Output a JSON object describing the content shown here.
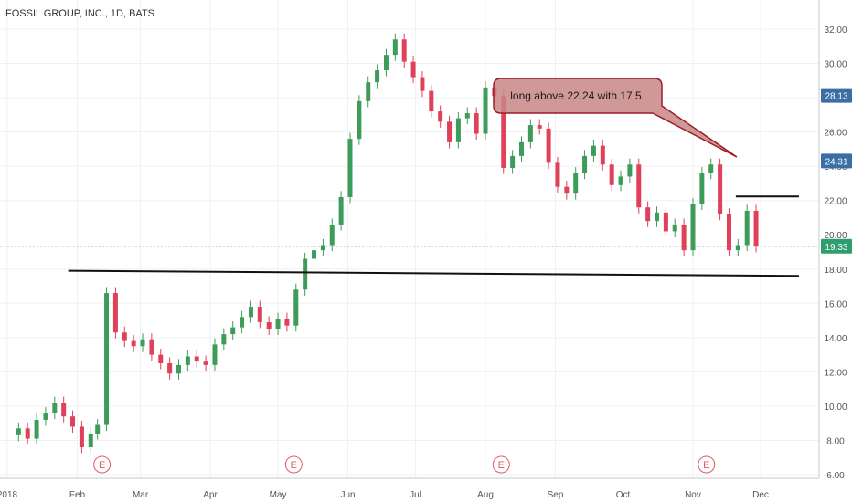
{
  "header": {
    "title": "FOSSIL GROUP, INC., 1D, BATS"
  },
  "annotation": {
    "text": "long above 22.24 with 17.5"
  },
  "colors": {
    "up": "#3e9c5a",
    "down": "#e0405a",
    "line": "#111111",
    "callout_fill": "#c98686",
    "callout_border": "#9e1c2a",
    "badge_blue": "#3a6ea5",
    "badge_green": "#2e9e6e",
    "earnings": "#e05a6a"
  },
  "chart_data": {
    "type": "candlestick",
    "title": "FOSSIL GROUP, INC., 1D, BATS",
    "xlabel": "",
    "ylabel": "",
    "ylim": [
      5.8,
      33.0
    ],
    "y_ticks": [
      "32.00",
      "30.00",
      "28.00",
      "26.00",
      "24.00",
      "22.00",
      "20.00",
      "18.00",
      "16.00",
      "14.00",
      "12.00",
      "10.00",
      "8.00",
      "6.00"
    ],
    "x_ticks": [
      "2018",
      "Feb",
      "Mar",
      "Apr",
      "May",
      "Jun",
      "Jul",
      "Aug",
      "Sep",
      "Oct",
      "Nov",
      "Dec"
    ],
    "price_badges": [
      {
        "value": 28.13,
        "label": "28.13",
        "color": "#3a6ea5"
      },
      {
        "value": 24.31,
        "label": "24.31",
        "color": "#3a6ea5"
      },
      {
        "value": 19.33,
        "label": "19.33",
        "color": "#2e9e6e"
      }
    ],
    "last_price_line": 19.33,
    "earnings_markers": [
      "Feb",
      "May",
      "Aug",
      "Nov"
    ],
    "earnings_label": "E",
    "support_trendline": {
      "from": {
        "date": "2018-01-28",
        "value": 17.9
      },
      "to": {
        "date": "2018-12-18",
        "value": 17.6
      }
    },
    "resistance_line": {
      "from": {
        "date": "2018-11-20",
        "value": 22.24
      },
      "to": {
        "date": "2018-12-18",
        "value": 22.24
      }
    },
    "closes": [
      {
        "date": "2018-01-02",
        "close": 8.3
      },
      {
        "date": "2018-01-06",
        "close": 8.7
      },
      {
        "date": "2018-01-10",
        "close": 8.1
      },
      {
        "date": "2018-01-14",
        "close": 9.2
      },
      {
        "date": "2018-01-18",
        "close": 9.6
      },
      {
        "date": "2018-01-22",
        "close": 10.2
      },
      {
        "date": "2018-01-26",
        "close": 9.4
      },
      {
        "date": "2018-01-30",
        "close": 8.8
      },
      {
        "date": "2018-02-03",
        "close": 7.6
      },
      {
        "date": "2018-02-07",
        "close": 8.4
      },
      {
        "date": "2018-02-10",
        "close": 8.9
      },
      {
        "date": "2018-02-14",
        "close": 16.6
      },
      {
        "date": "2018-02-18",
        "close": 14.3
      },
      {
        "date": "2018-02-22",
        "close": 13.8
      },
      {
        "date": "2018-02-26",
        "close": 13.5
      },
      {
        "date": "2018-03-02",
        "close": 13.9
      },
      {
        "date": "2018-03-06",
        "close": 13.0
      },
      {
        "date": "2018-03-10",
        "close": 12.5
      },
      {
        "date": "2018-03-14",
        "close": 11.9
      },
      {
        "date": "2018-03-18",
        "close": 12.4
      },
      {
        "date": "2018-03-22",
        "close": 12.9
      },
      {
        "date": "2018-03-26",
        "close": 12.6
      },
      {
        "date": "2018-03-30",
        "close": 12.4
      },
      {
        "date": "2018-04-03",
        "close": 13.6
      },
      {
        "date": "2018-04-07",
        "close": 14.2
      },
      {
        "date": "2018-04-11",
        "close": 14.6
      },
      {
        "date": "2018-04-15",
        "close": 15.2
      },
      {
        "date": "2018-04-19",
        "close": 15.8
      },
      {
        "date": "2018-04-23",
        "close": 14.9
      },
      {
        "date": "2018-04-27",
        "close": 14.5
      },
      {
        "date": "2018-05-01",
        "close": 15.1
      },
      {
        "date": "2018-05-05",
        "close": 14.7
      },
      {
        "date": "2018-05-09",
        "close": 16.8
      },
      {
        "date": "2018-05-13",
        "close": 18.6
      },
      {
        "date": "2018-05-17",
        "close": 19.1
      },
      {
        "date": "2018-05-21",
        "close": 19.4
      },
      {
        "date": "2018-05-25",
        "close": 20.6
      },
      {
        "date": "2018-05-29",
        "close": 22.2
      },
      {
        "date": "2018-06-02",
        "close": 25.6
      },
      {
        "date": "2018-06-06",
        "close": 27.8
      },
      {
        "date": "2018-06-10",
        "close": 28.9
      },
      {
        "date": "2018-06-14",
        "close": 29.6
      },
      {
        "date": "2018-06-18",
        "close": 30.5
      },
      {
        "date": "2018-06-22",
        "close": 31.4
      },
      {
        "date": "2018-06-26",
        "close": 30.1
      },
      {
        "date": "2018-06-30",
        "close": 29.2
      },
      {
        "date": "2018-07-04",
        "close": 28.4
      },
      {
        "date": "2018-07-08",
        "close": 27.2
      },
      {
        "date": "2018-07-12",
        "close": 26.6
      },
      {
        "date": "2018-07-16",
        "close": 25.4
      },
      {
        "date": "2018-07-20",
        "close": 26.8
      },
      {
        "date": "2018-07-24",
        "close": 27.1
      },
      {
        "date": "2018-07-28",
        "close": 25.9
      },
      {
        "date": "2018-08-01",
        "close": 28.6
      },
      {
        "date": "2018-08-05",
        "close": 28.1
      },
      {
        "date": "2018-08-09",
        "close": 23.9
      },
      {
        "date": "2018-08-13",
        "close": 24.6
      },
      {
        "date": "2018-08-17",
        "close": 25.4
      },
      {
        "date": "2018-08-21",
        "close": 26.4
      },
      {
        "date": "2018-08-25",
        "close": 26.2
      },
      {
        "date": "2018-08-29",
        "close": 24.2
      },
      {
        "date": "2018-09-02",
        "close": 22.8
      },
      {
        "date": "2018-09-06",
        "close": 22.4
      },
      {
        "date": "2018-09-10",
        "close": 23.6
      },
      {
        "date": "2018-09-14",
        "close": 24.6
      },
      {
        "date": "2018-09-18",
        "close": 25.2
      },
      {
        "date": "2018-09-22",
        "close": 24.1
      },
      {
        "date": "2018-09-26",
        "close": 22.9
      },
      {
        "date": "2018-09-30",
        "close": 23.4
      },
      {
        "date": "2018-10-04",
        "close": 24.1
      },
      {
        "date": "2018-10-08",
        "close": 21.6
      },
      {
        "date": "2018-10-12",
        "close": 20.8
      },
      {
        "date": "2018-10-16",
        "close": 21.3
      },
      {
        "date": "2018-10-20",
        "close": 20.2
      },
      {
        "date": "2018-10-24",
        "close": 20.6
      },
      {
        "date": "2018-10-28",
        "close": 19.1
      },
      {
        "date": "2018-11-01",
        "close": 21.8
      },
      {
        "date": "2018-11-05",
        "close": 23.6
      },
      {
        "date": "2018-11-09",
        "close": 24.1
      },
      {
        "date": "2018-11-13",
        "close": 21.2
      },
      {
        "date": "2018-11-17",
        "close": 19.1
      },
      {
        "date": "2018-11-21",
        "close": 19.4
      },
      {
        "date": "2018-11-25",
        "close": 21.4
      },
      {
        "date": "2018-11-29",
        "close": 19.33
      }
    ]
  }
}
